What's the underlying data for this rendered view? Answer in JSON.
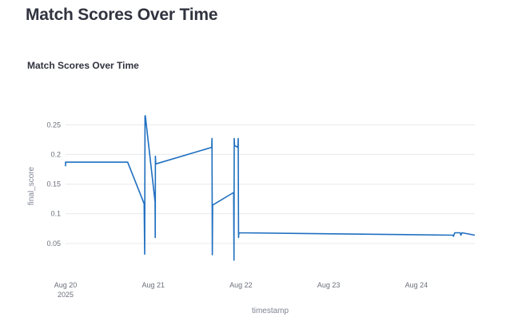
{
  "page": {
    "title": "Match Scores Over Time"
  },
  "chart_data": {
    "type": "line",
    "title": "Match Scores Over Time",
    "xlabel": "timestamp",
    "ylabel": "final_score",
    "x_tick_labels": [
      {
        "value": "2025-08-20",
        "line1": "Aug 20",
        "line2": "2025"
      },
      {
        "value": "2025-08-21",
        "line1": "Aug 21",
        "line2": ""
      },
      {
        "value": "2025-08-22",
        "line1": "Aug 22",
        "line2": ""
      },
      {
        "value": "2025-08-23",
        "line1": "Aug 23",
        "line2": ""
      },
      {
        "value": "2025-08-24",
        "line1": "Aug 24",
        "line2": ""
      }
    ],
    "y_ticks": [
      0.05,
      0.1,
      0.15,
      0.2,
      0.25
    ],
    "y_tick_labels": [
      "0.05",
      "0.1",
      "0.15",
      "0.2",
      "0.25"
    ],
    "xlim": [
      "2025-08-20 00:00",
      "2025-08-24 16:00"
    ],
    "ylim": [
      0.0,
      0.28
    ],
    "grid": true,
    "line_color": "#1f6fc0",
    "x": [
      "2025-08-20 00:00",
      "2025-08-20 00:00",
      "2025-08-20 17:00",
      "2025-08-20 21:30",
      "2025-08-20 21:40",
      "2025-08-20 21:45",
      "2025-08-20 21:50",
      "2025-08-21 00:30",
      "2025-08-21 00:32",
      "2025-08-21 00:35",
      "2025-08-21 00:40",
      "2025-08-21 16:00",
      "2025-08-21 16:05",
      "2025-08-21 16:10",
      "2025-08-21 16:15",
      "2025-08-21 16:20",
      "2025-08-21 22:00",
      "2025-08-21 22:05",
      "2025-08-21 22:10",
      "2025-08-21 22:15",
      "2025-08-21 23:10",
      "2025-08-21 23:15",
      "2025-08-21 23:20",
      "2025-08-21 23:25",
      "2025-08-24 10:00",
      "2025-08-24 10:10",
      "2025-08-24 10:30",
      "2025-08-24 12:00",
      "2025-08-24 12:10",
      "2025-08-24 12:30",
      "2025-08-24 16:00"
    ],
    "y": [
      0.18,
      0.187,
      0.187,
      0.117,
      0.032,
      0.265,
      0.265,
      0.12,
      0.06,
      0.197,
      0.184,
      0.212,
      0.227,
      0.031,
      0.115,
      0.115,
      0.136,
      0.022,
      0.227,
      0.215,
      0.212,
      0.227,
      0.06,
      0.068,
      0.064,
      0.062,
      0.068,
      0.068,
      0.064,
      0.068,
      0.064
    ]
  }
}
